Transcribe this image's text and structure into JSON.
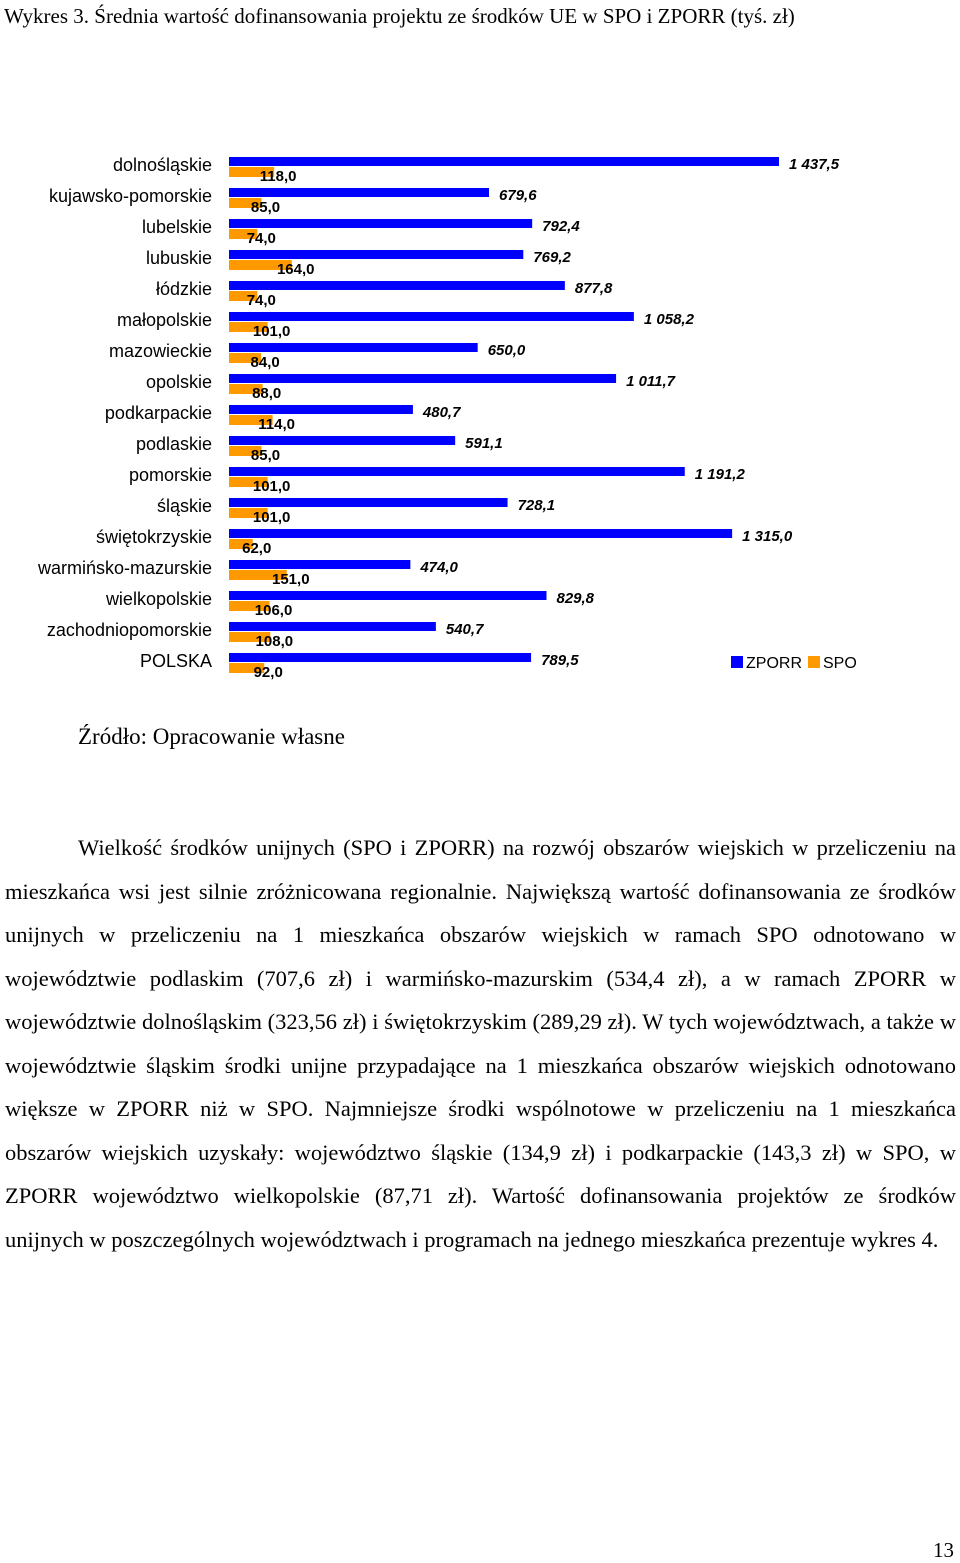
{
  "page_title": "Wykres 3. Średnia wartość dofinansowania projektu ze środków UE w SPO i ZPORR (tyś. zł)",
  "colors": {
    "zporr": "#0000ff",
    "spo": "#ff9900"
  },
  "chart_data": {
    "type": "bar",
    "orientation": "horizontal",
    "categories": [
      "dolnośląskie",
      "kujawsko-pomorskie",
      "lubelskie",
      "lubuskie",
      "łódzkie",
      "małopolskie",
      "mazowieckie",
      "opolskie",
      "podkarpackie",
      "podlaskie",
      "pomorskie",
      "śląskie",
      "świętokrzyskie",
      "warmińsko-mazurskie",
      "wielkopolskie",
      "zachodniopomorskie",
      "POLSKA"
    ],
    "series": [
      {
        "name": "ZPORR",
        "values": [
          1437.5,
          679.6,
          792.4,
          769.2,
          877.8,
          1058.2,
          650.0,
          1011.7,
          480.7,
          591.1,
          1191.2,
          728.1,
          1315.0,
          474.0,
          829.8,
          540.7,
          789.5
        ],
        "labels": [
          "1 437,5",
          "679,6",
          "792,4",
          "769,2",
          "877,8",
          "1 058,2",
          "650,0",
          "1 011,7",
          "480,7",
          "591,1",
          "1 191,2",
          "728,1",
          "1 315,0",
          "474,0",
          "829,8",
          "540,7",
          "789,5"
        ]
      },
      {
        "name": "SPO",
        "values": [
          118.0,
          85.0,
          74.0,
          164.0,
          74.0,
          101.0,
          84.0,
          88.0,
          114.0,
          85.0,
          101.0,
          101.0,
          62.0,
          151.0,
          106.0,
          108.0,
          92.0
        ],
        "labels": [
          "118,0",
          "85,0",
          "74,0",
          "164,0",
          "74,0",
          "101,0",
          "84,0",
          "88,0",
          "114,0",
          "85,0",
          "101,0",
          "101,0",
          "62,0",
          "151,0",
          "106,0",
          "108,0",
          "92,0"
        ]
      }
    ],
    "legend_position": "right",
    "grid": false
  },
  "source": "Źródło: Opracowanie własne",
  "body_text": "Wielkość środków unijnych (SPO i ZPORR) na rozwój obszarów wiejskich w przeliczeniu na mieszkańca wsi jest silnie zróżnicowana regionalnie. Największą wartość dofinansowania ze środków unijnych w przeliczeniu na 1 mieszkańca obszarów wiejskich w ramach SPO odnotowano w województwie podlaskim (707,6 zł) i warmińsko-mazurskim (534,4 zł), a w ramach ZPORR w województwie dolnośląskim (323,56 zł) i świętokrzyskim (289,29 zł). W tych województwach, a także w województwie śląskim środki unijne przypadające na 1 mieszkańca obszarów wiejskich odnotowano większe w ZPORR niż w SPO. Najmniejsze środki wspólnotowe w przeliczeniu na 1 mieszkańca obszarów wiejskich uzyskały: województwo śląskie (134,9 zł) i podkarpackie (143,3 zł) w SPO, w ZPORR województwo wielkopolskie (87,71 zł). Wartość dofinansowania projektów ze środków unijnych w poszczególnych województwach i programach na jednego mieszkańca prezentuje wykres 4.",
  "page_number": "13"
}
